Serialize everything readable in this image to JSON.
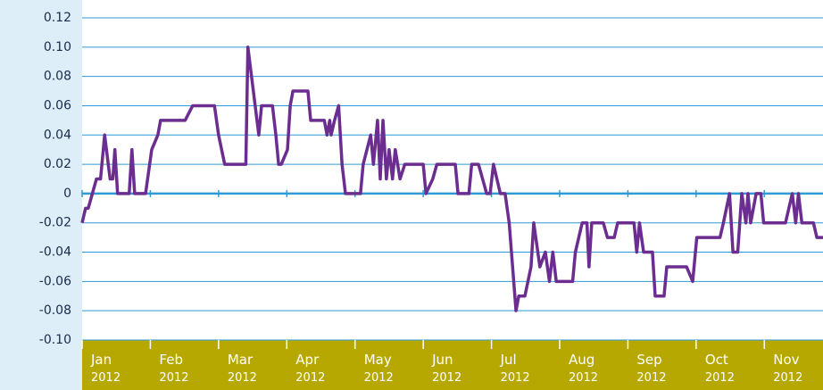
{
  "chart_data": {
    "type": "line",
    "x": [
      0,
      0.05,
      0.09,
      0.21,
      0.27,
      0.33,
      0.41,
      0.45,
      0.48,
      0.52,
      0.69,
      0.73,
      0.77,
      0.93,
      1.02,
      1.11,
      1.15,
      1.51,
      1.62,
      1.94,
      2.0,
      2.09,
      2.4,
      2.43,
      2.51,
      2.59,
      2.63,
      2.79,
      2.84,
      2.88,
      2.92,
      3.01,
      3.05,
      3.09,
      3.31,
      3.35,
      3.55,
      3.59,
      3.63,
      3.65,
      3.7,
      3.76,
      3.81,
      3.86,
      4.08,
      4.12,
      4.23,
      4.27,
      4.33,
      4.37,
      4.41,
      4.46,
      4.5,
      4.55,
      4.59,
      4.66,
      4.73,
      5.0,
      5.04,
      5.14,
      5.2,
      5.47,
      5.51,
      5.67,
      5.71,
      5.81,
      5.93,
      5.98,
      6.03,
      6.13,
      6.2,
      6.26,
      6.31,
      6.36,
      6.4,
      6.49,
      6.58,
      6.62,
      6.71,
      6.79,
      6.85,
      6.9,
      6.95,
      7.19,
      7.23,
      7.33,
      7.4,
      7.43,
      7.47,
      7.64,
      7.7,
      7.8,
      7.85,
      8.09,
      8.13,
      8.17,
      8.23,
      8.36,
      8.4,
      8.53,
      8.57,
      8.86,
      8.95,
      9.01,
      9.31,
      9.35,
      9.4,
      9.49,
      9.54,
      9.61,
      9.67,
      9.73,
      9.76,
      9.8,
      9.88,
      9.95,
      9.99,
      10.03,
      10.08,
      10.31,
      10.41,
      10.46,
      10.5,
      10.55,
      10.72,
      10.77,
      10.86
    ],
    "series": [
      {
        "color": "#6b2d8f",
        "values": [
          -0.02,
          -0.01,
          -0.01,
          0.01,
          0.01,
          0.04,
          0.01,
          0.01,
          0.03,
          0,
          0,
          0.03,
          0,
          0,
          0.03,
          0.04,
          0.05,
          0.05,
          0.06,
          0.06,
          0.04,
          0.02,
          0.02,
          0.1,
          0.07,
          0.04,
          0.06,
          0.06,
          0.04,
          0.02,
          0.02,
          0.03,
          0.06,
          0.07,
          0.07,
          0.05,
          0.05,
          0.04,
          0.05,
          0.04,
          0.05,
          0.06,
          0.02,
          0,
          0,
          0.02,
          0.04,
          0.02,
          0.05,
          0.01,
          0.05,
          0.01,
          0.03,
          0.01,
          0.03,
          0.01,
          0.02,
          0.02,
          0,
          0.01,
          0.02,
          0.02,
          0,
          0,
          0.02,
          0.02,
          0,
          0,
          0.02,
          0,
          0,
          -0.02,
          -0.05,
          -0.08,
          -0.07,
          -0.07,
          -0.05,
          -0.02,
          -0.05,
          -0.04,
          -0.06,
          -0.04,
          -0.06,
          -0.06,
          -0.04,
          -0.02,
          -0.02,
          -0.05,
          -0.02,
          -0.02,
          -0.03,
          -0.03,
          -0.02,
          -0.02,
          -0.04,
          -0.02,
          -0.04,
          -0.04,
          -0.07,
          -0.07,
          -0.05,
          -0.05,
          -0.06,
          -0.03,
          -0.03,
          -0.03,
          -0.02,
          0,
          -0.04,
          -0.04,
          0,
          -0.02,
          0,
          -0.02,
          0,
          0,
          -0.02,
          -0.02,
          -0.02,
          -0.02,
          0,
          -0.02,
          0,
          -0.02,
          -0.02,
          -0.03,
          -0.03
        ]
      }
    ],
    "xlim": [
      0,
      10.86
    ],
    "xticks": [
      {
        "value": 0,
        "label": "Jan 2012"
      },
      {
        "value": 1,
        "label": "Feb 2012"
      },
      {
        "value": 2,
        "label": "Mar 2012"
      },
      {
        "value": 3,
        "label": "Apr 2012"
      },
      {
        "value": 4,
        "label": "May 2012"
      },
      {
        "value": 5,
        "label": "Jun 2012"
      },
      {
        "value": 6,
        "label": "Jul 2012"
      },
      {
        "value": 7,
        "label": "Aug 2012"
      },
      {
        "value": 8,
        "label": "Sep 2012"
      },
      {
        "value": 9,
        "label": "Oct 2012"
      },
      {
        "value": 10,
        "label": "Nov 2012"
      }
    ],
    "ylim": [
      -0.1,
      0.12
    ],
    "yticks": [
      {
        "value": -0.1,
        "label": "-0.10"
      },
      -0.08,
      -0.06,
      -0.04,
      -0.02,
      0,
      0.02,
      0.04,
      0.06,
      0.08,
      {
        "value": 0.1,
        "label": "0.10"
      },
      0.12
    ],
    "grid": true
  }
}
